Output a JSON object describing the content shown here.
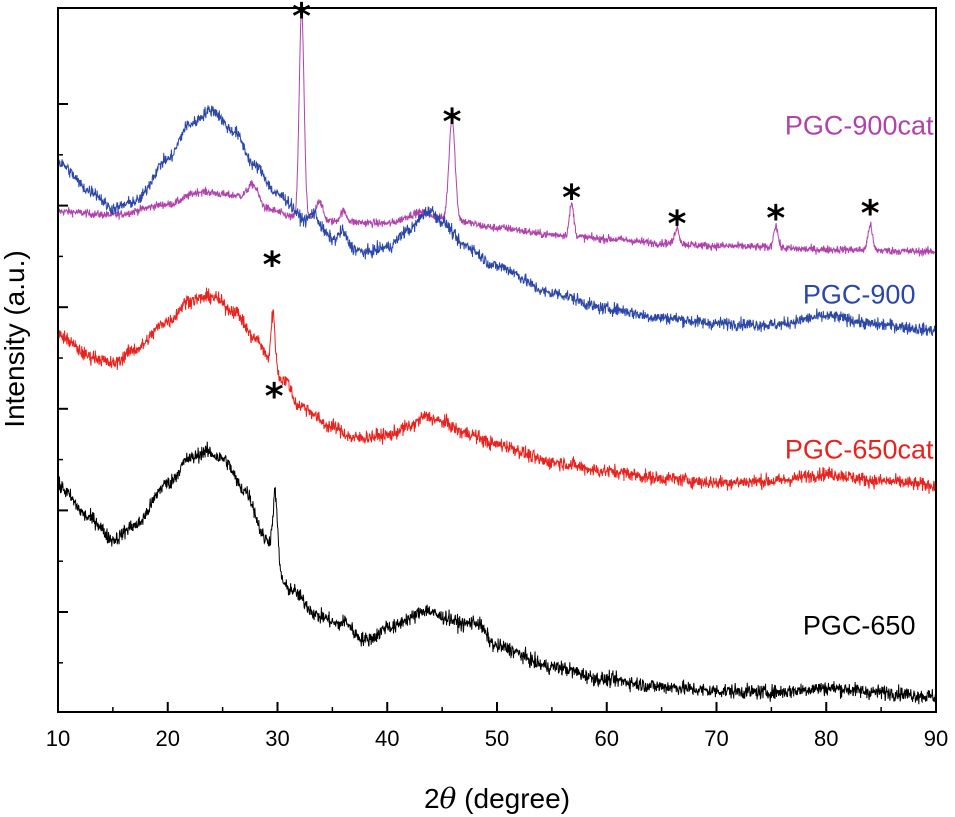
{
  "chart_data": {
    "type": "line",
    "title": "",
    "xlabel_prefix": "2",
    "xlabel_symbol": "θ",
    "xlabel_suffix": " (degree)",
    "ylabel": "Intensity (a.u.)",
    "xlim": [
      10,
      90
    ],
    "ylim": [
      0,
      100
    ],
    "x_ticks": [
      10,
      20,
      30,
      40,
      50,
      60,
      70,
      80,
      90
    ],
    "x_tick_labels": [
      "10",
      "20",
      "30",
      "40",
      "50",
      "60",
      "70",
      "80",
      "90"
    ],
    "y_ticks_visible_labels": false,
    "grid": false,
    "series": [
      {
        "name": "PGC-900cat",
        "color": "#b042ac",
        "baseline": [
          [
            10,
            71.1
          ],
          [
            15,
            70.6
          ],
          [
            20,
            72.1
          ],
          [
            23,
            73.9
          ],
          [
            26,
            73.4
          ],
          [
            29,
            71.4
          ],
          [
            32,
            70.1
          ],
          [
            36,
            69.6
          ],
          [
            40,
            69.4
          ],
          [
            43,
            70.9
          ],
          [
            46,
            69.8
          ],
          [
            50,
            68.8
          ],
          [
            55,
            67.8
          ],
          [
            60,
            67.2
          ],
          [
            65,
            66.6
          ],
          [
            70,
            66.2
          ],
          [
            80,
            65.7
          ],
          [
            90,
            65.4
          ]
        ],
        "peaks": [
          [
            27.8,
            2.8,
            0.5
          ],
          [
            32.2,
            29.7,
            0.22
          ],
          [
            33.8,
            2.8,
            0.3
          ],
          [
            36.0,
            1.5,
            0.3
          ],
          [
            45.9,
            14.5,
            0.28
          ],
          [
            56.8,
            4.5,
            0.2
          ],
          [
            66.4,
            2.3,
            0.2
          ],
          [
            75.4,
            3.2,
            0.2
          ],
          [
            84.0,
            3.6,
            0.2
          ]
        ],
        "noise": 0.55
      },
      {
        "name": "PGC-900",
        "color": "#2b47a8",
        "baseline": [
          [
            10,
            78.0
          ],
          [
            13,
            74.0
          ],
          [
            15,
            71.5
          ],
          [
            17,
            72.5
          ],
          [
            20,
            78.5
          ],
          [
            22,
            83.5
          ],
          [
            24,
            85.5
          ],
          [
            26,
            82.5
          ],
          [
            28,
            77.5
          ],
          [
            30,
            73.5
          ],
          [
            33,
            69.3
          ],
          [
            36,
            66.3
          ],
          [
            38,
            65.3
          ],
          [
            40,
            66.0
          ],
          [
            42,
            68.5
          ],
          [
            43.5,
            70.7
          ],
          [
            45,
            69.6
          ],
          [
            47,
            66.3
          ],
          [
            50,
            63.3
          ],
          [
            55,
            59.5
          ],
          [
            60,
            57.3
          ],
          [
            65,
            56.0
          ],
          [
            70,
            55.2
          ],
          [
            75,
            55.0
          ],
          [
            80,
            56.2
          ],
          [
            85,
            55.0
          ],
          [
            90,
            54.2
          ]
        ],
        "peaks": [
          [
            33.3,
            1.7,
            0.4
          ],
          [
            35.9,
            2.0,
            0.35
          ],
          [
            44.1,
            0.8,
            0.4
          ]
        ],
        "noise": 0.85
      },
      {
        "name": "PGC-650cat",
        "color": "#e8221c",
        "baseline": [
          [
            10,
            53.5
          ],
          [
            13,
            50.5
          ],
          [
            15,
            49.5
          ],
          [
            17,
            51.5
          ],
          [
            20,
            55.5
          ],
          [
            22,
            58.5
          ],
          [
            24,
            59.0
          ],
          [
            26,
            57.0
          ],
          [
            28,
            53.0
          ],
          [
            30,
            47.5
          ],
          [
            32,
            43.5
          ],
          [
            35,
            40.5
          ],
          [
            37,
            38.9
          ],
          [
            40,
            39.3
          ],
          [
            42,
            40.5
          ],
          [
            43.5,
            42.0
          ],
          [
            45,
            41.2
          ],
          [
            47,
            39.7
          ],
          [
            50,
            38.0
          ],
          [
            55,
            35.5
          ],
          [
            60,
            34.2
          ],
          [
            65,
            33.2
          ],
          [
            70,
            32.6
          ],
          [
            75,
            32.8
          ],
          [
            80,
            33.8
          ],
          [
            85,
            32.8
          ],
          [
            90,
            32.2
          ]
        ],
        "peaks": [
          [
            29.6,
            8.5,
            0.2
          ],
          [
            31.0,
            1.2,
            0.3
          ]
        ],
        "noise": 0.95
      },
      {
        "name": "PGC-650",
        "color": "#000000",
        "baseline": [
          [
            10,
            32.0
          ],
          [
            13,
            27.5
          ],
          [
            15,
            24.5
          ],
          [
            17,
            26.5
          ],
          [
            20,
            32.5
          ],
          [
            22,
            36.0
          ],
          [
            23.5,
            37.0
          ],
          [
            25,
            36.0
          ],
          [
            27,
            31.5
          ],
          [
            29,
            24.5
          ],
          [
            31,
            17.5
          ],
          [
            34,
            13.5
          ],
          [
            36,
            12.0
          ],
          [
            38,
            10.3
          ],
          [
            40,
            11.3
          ],
          [
            42,
            13.3
          ],
          [
            43.5,
            14.5
          ],
          [
            45,
            13.5
          ],
          [
            47,
            12.5
          ],
          [
            48,
            12.8
          ],
          [
            50,
            9.3
          ],
          [
            55,
            6.4
          ],
          [
            60,
            4.6
          ],
          [
            65,
            3.6
          ],
          [
            70,
            3.0
          ],
          [
            75,
            2.8
          ],
          [
            80,
            3.4
          ],
          [
            85,
            2.8
          ],
          [
            90,
            2.2
          ]
        ],
        "peaks": [
          [
            29.8,
            9.0,
            0.2
          ],
          [
            36.2,
            0.9,
            0.4
          ],
          [
            40.0,
            0.9,
            0.4
          ]
        ],
        "noise": 1.0
      }
    ],
    "annotations": [
      {
        "text": "*",
        "x": 32.2,
        "y": 100.5
      },
      {
        "text": "*",
        "x": 45.9,
        "y": 85.5
      },
      {
        "text": "*",
        "x": 56.8,
        "y": 74.7
      },
      {
        "text": "*",
        "x": 66.4,
        "y": 71.0
      },
      {
        "text": "*",
        "x": 75.4,
        "y": 71.8
      },
      {
        "text": "*",
        "x": 84.0,
        "y": 72.5
      },
      {
        "text": "*",
        "x": 29.5,
        "y": 65.2
      },
      {
        "text": "*",
        "x": 29.7,
        "y": 46.5
      }
    ],
    "series_labels": [
      {
        "text": "PGC-900cat",
        "x": 83,
        "y": 82.0,
        "color": "#b042ac"
      },
      {
        "text": "PGC-900",
        "x": 83,
        "y": 58.0,
        "color": "#2b47a8"
      },
      {
        "text": "PGC-650cat",
        "x": 83,
        "y": 36.0,
        "color": "#e8221c"
      },
      {
        "text": "PGC-650",
        "x": 83,
        "y": 11.0,
        "color": "#000000"
      }
    ]
  }
}
